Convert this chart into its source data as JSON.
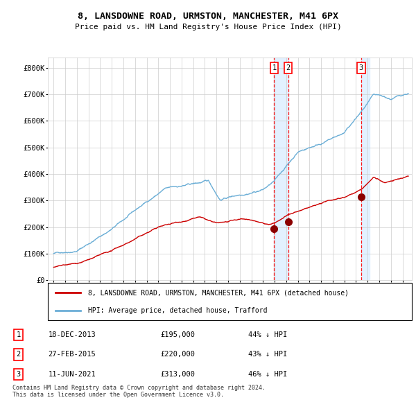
{
  "title": "8, LANSDOWNE ROAD, URMSTON, MANCHESTER, M41 6PX",
  "subtitle": "Price paid vs. HM Land Registry's House Price Index (HPI)",
  "hpi_color": "#6baed6",
  "price_color": "#cc0000",
  "marker_color": "#8b0000",
  "sale_dates": [
    2013.96,
    2015.16,
    2021.44
  ],
  "sale_prices": [
    195000,
    220000,
    313000
  ],
  "sale_labels": [
    "1",
    "2",
    "3"
  ],
  "sale_info": [
    {
      "label": "1",
      "date": "18-DEC-2013",
      "price": "£195,000",
      "pct": "44% ↓ HPI"
    },
    {
      "label": "2",
      "date": "27-FEB-2015",
      "price": "£220,000",
      "pct": "43% ↓ HPI"
    },
    {
      "label": "3",
      "date": "11-JUN-2021",
      "price": "£313,000",
      "pct": "46% ↓ HPI"
    }
  ],
  "ylabel_vals": [
    0,
    100000,
    200000,
    300000,
    400000,
    500000,
    600000,
    700000,
    800000
  ],
  "ylabel_labels": [
    "£0",
    "£100K",
    "£200K",
    "£300K",
    "£400K",
    "£500K",
    "£600K",
    "£700K",
    "£800K"
  ],
  "xlim": [
    1994.5,
    2025.8
  ],
  "ylim": [
    0,
    840000
  ],
  "footer": "Contains HM Land Registry data © Crown copyright and database right 2024.\nThis data is licensed under the Open Government Licence v3.0.",
  "legend1": "8, LANSDOWNE ROAD, URMSTON, MANCHESTER, M41 6PX (detached house)",
  "legend2": "HPI: Average price, detached house, Trafford",
  "background_color": "#ffffff",
  "grid_color": "#cccccc",
  "shade_color": "#ddeeff"
}
